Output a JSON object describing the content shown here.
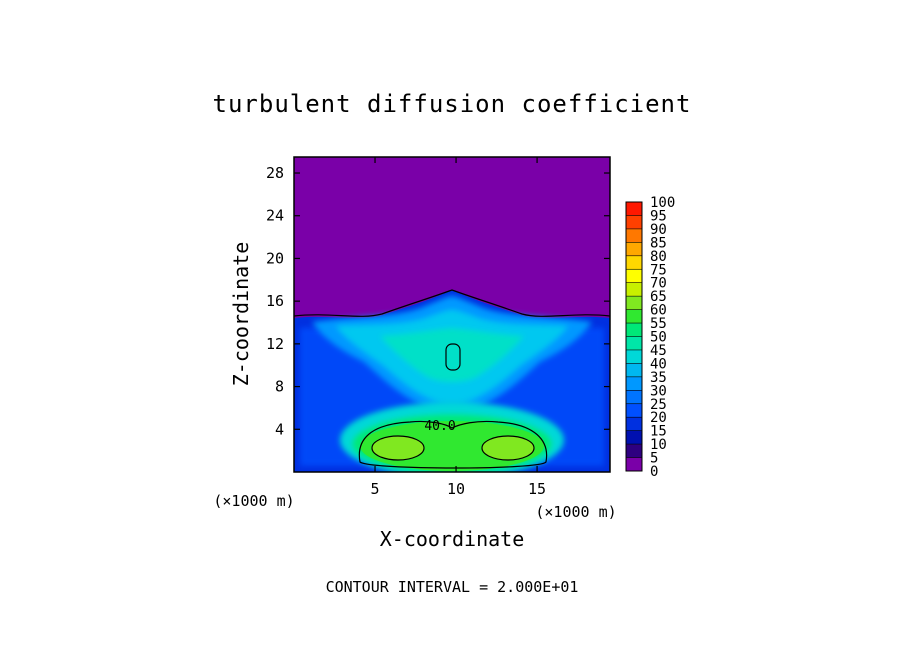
{
  "chart_data": {
    "type": "heatmap",
    "title": "turbulent diffusion coefficient",
    "xlabel": "X-coordinate",
    "ylabel": "Z-coordinate",
    "x_unit": "(×1000 m)",
    "z_unit": "(×1000 m)",
    "xlim": [
      0,
      19.5
    ],
    "ylim": [
      0,
      29.5
    ],
    "x_ticks": [
      5,
      10,
      15
    ],
    "x_tick_labels": [
      "5",
      "10",
      "15"
    ],
    "y_ticks": [
      4,
      8,
      12,
      16,
      20,
      24,
      28
    ],
    "y_tick_labels": [
      "4",
      "8",
      "12",
      "16",
      "20",
      "24",
      "28"
    ],
    "contour_interval_text": "CONTOUR INTERVAL = 2.000E+01",
    "contour_label": "40.0",
    "colorbar": {
      "levels": [
        0,
        5,
        10,
        15,
        20,
        25,
        30,
        35,
        40,
        45,
        50,
        55,
        60,
        65,
        70,
        75,
        80,
        85,
        90,
        95,
        100
      ],
      "labels": [
        "0",
        "5",
        "10",
        "15",
        "20",
        "25",
        "30",
        "35",
        "40",
        "45",
        "50",
        "55",
        "60",
        "65",
        "70",
        "75",
        "80",
        "85",
        "90",
        "95",
        "100"
      ],
      "colors": [
        "#7a00a8",
        "#2e0080",
        "#0010b0",
        "#0030e0",
        "#0050ff",
        "#0074ff",
        "#0098ff",
        "#00b8f0",
        "#00d8d8",
        "#00e6a8",
        "#00e878",
        "#30e830",
        "#80e820",
        "#c8f000",
        "#ffff00",
        "#ffd800",
        "#ffa800",
        "#ff7800",
        "#ff4000",
        "#ff1800",
        "#f08080"
      ]
    },
    "field": {
      "background_value": 0,
      "regions": [
        {
          "name": "upper-stable-layer",
          "x": [
            0,
            19.5
          ],
          "z": [
            15,
            29.5
          ],
          "value": 0
        },
        {
          "name": "lower-boundary-layer",
          "x": [
            0,
            19.5
          ],
          "z": [
            0,
            15
          ],
          "value": 12
        },
        {
          "name": "upper-turbulent-plume",
          "center": [
            10,
            12.5
          ],
          "value": 32
        },
        {
          "name": "near-surface-core",
          "center": [
            10,
            2.5
          ],
          "value": 55
        },
        {
          "name": "left-core-maximum",
          "center": [
            7,
            2.5
          ],
          "value": 60
        },
        {
          "name": "right-core-maximum",
          "center": [
            12.8,
            2.5
          ],
          "value": 60
        }
      ]
    }
  }
}
